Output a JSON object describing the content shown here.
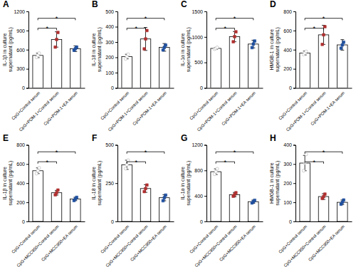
{
  "chart_data": [
    {
      "type": "bar",
      "title": "A",
      "ylabel": "IL-1β in culture\nsupernatant (pg/mL)",
      "ylim": [
        0,
        1200
      ],
      "yticks": [
        0,
        300,
        600,
        900,
        1200
      ],
      "categories": [
        "CpG+Control serum",
        "CpG+POM-1+Control serum",
        "CpG+POM-1+EA serum"
      ],
      "values": [
        510,
        760,
        615
      ],
      "errors": [
        35,
        120,
        45
      ],
      "color": "white",
      "dots": [
        {
          "values": [
            480,
            510,
            545
          ],
          "color": "#b0b0b0",
          "marker": "open-circle"
        },
        {
          "values": [
            640,
            760,
            870
          ],
          "color": "#b03030",
          "marker": "square"
        },
        {
          "values": [
            590,
            615,
            640
          ],
          "color": "#2050a0",
          "marker": "square"
        }
      ],
      "annotations": [
        {
          "text": "*",
          "between": [
            "CpG+Control serum",
            "CpG+POM-1+Control serum"
          ]
        },
        {
          "text": "*",
          "between": [
            "CpG+Control serum",
            "CpG+POM-1+EA serum"
          ]
        }
      ]
    },
    {
      "type": "bar",
      "title": "B",
      "ylabel": "IL-18 in culture\nsupernatant (pg/mL)",
      "ylim": [
        0,
        500
      ],
      "yticks": [
        0,
        100,
        200,
        300,
        400,
        500
      ],
      "categories": [
        "CpG+Control serum",
        "CpG+POM-1+Control serum",
        "CpG+POM-1+EA serum"
      ],
      "values": [
        205,
        320,
        265
      ],
      "errors": [
        15,
        75,
        25
      ],
      "color": "white",
      "dots": [
        {
          "values": [
            190,
            205,
            220
          ],
          "color": "#b0b0b0",
          "marker": "open-circle"
        },
        {
          "values": [
            255,
            320,
            375
          ],
          "color": "#b03030",
          "marker": "square"
        },
        {
          "values": [
            248,
            265,
            280
          ],
          "color": "#2050a0",
          "marker": "square"
        }
      ],
      "annotations": [
        {
          "text": "*",
          "between": [
            "CpG+Control serum",
            "CpG+POM-1+Control serum"
          ]
        },
        {
          "text": "*",
          "between": [
            "CpG+Control serum",
            "CpG+POM-1+EA serum"
          ]
        }
      ]
    },
    {
      "type": "bar",
      "title": "C",
      "ylabel": "IL-1α in culture\nsupernatant (pg/mL)",
      "ylim": [
        0,
        1500
      ],
      "yticks": [
        0,
        500,
        1000,
        1500
      ],
      "categories": [
        "CpG+Control serum",
        "CpG+POM-1+Control serum",
        "CpG+POM-1+EA serum"
      ],
      "values": [
        775,
        1005,
        860
      ],
      "errors": [
        20,
        100,
        75
      ],
      "color": "white",
      "dots": [
        {
          "values": [
            760,
            775,
            795
          ],
          "color": "#b0b0b0",
          "marker": "open-circle"
        },
        {
          "values": [
            905,
            1005,
            1100
          ],
          "color": "#b03030",
          "marker": "square"
        },
        {
          "values": [
            790,
            860,
            920
          ],
          "color": "#2050a0",
          "marker": "square"
        }
      ],
      "annotations": [
        {
          "text": "*",
          "between": [
            "CpG+Control serum",
            "CpG+POM-1+Control serum"
          ]
        },
        {
          "text": "*",
          "between": [
            "CpG+Control serum",
            "CpG+POM-1+EA serum"
          ]
        }
      ]
    },
    {
      "type": "bar",
      "title": "D",
      "ylabel": "HMGB-1 in culture\nsupernatant (pg/mL)",
      "ylim": [
        0,
        800
      ],
      "yticks": [
        0,
        200,
        400,
        600,
        800
      ],
      "categories": [
        "CpG+Control serum",
        "CpG+POM-1+Control serum",
        "CpG+POM-1+EA serum"
      ],
      "values": [
        365,
        555,
        450
      ],
      "errors": [
        20,
        100,
        55
      ],
      "color": "white",
      "dots": [
        {
          "values": [
            350,
            365,
            382
          ],
          "color": "#b0b0b0",
          "marker": "open-circle"
        },
        {
          "values": [
            455,
            555,
            640
          ],
          "color": "#b03030",
          "marker": "square"
        },
        {
          "values": [
            415,
            450,
            478
          ],
          "color": "#2050a0",
          "marker": "square"
        }
      ],
      "annotations": [
        {
          "text": "*",
          "between": [
            "CpG+Control serum",
            "CpG+POM-1+Control serum"
          ]
        },
        {
          "text": "*",
          "between": [
            "CpG+Control serum",
            "CpG+POM-1+EA serum"
          ]
        }
      ]
    },
    {
      "type": "bar",
      "title": "E",
      "ylabel": "IL-1β in culture\nsupernatant (pg/mL)",
      "ylim": [
        0,
        800
      ],
      "yticks": [
        0,
        200,
        400,
        600,
        800
      ],
      "categories": [
        "CpG+Control serum",
        "CpG+MCC950+Control serum",
        "CpG+MCC950+EA serum"
      ],
      "values": [
        530,
        300,
        235
      ],
      "errors": [
        30,
        25,
        18
      ],
      "color": "white",
      "dots": [
        {
          "values": [
            500,
            530,
            560
          ],
          "color": "#b0b0b0",
          "marker": "open-circle"
        },
        {
          "values": [
            278,
            300,
            328
          ],
          "color": "#b03030",
          "marker": "square"
        },
        {
          "values": [
            218,
            235,
            252
          ],
          "color": "#2050a0",
          "marker": "square"
        }
      ],
      "annotations": [
        {
          "text": "*",
          "between": [
            "CpG+Control serum",
            "CpG+MCC950+Control serum"
          ]
        },
        {
          "text": "*",
          "between": [
            "CpG+Control serum",
            "CpG+MCC950+EA serum"
          ]
        }
      ]
    },
    {
      "type": "bar",
      "title": "F",
      "ylabel": "IL-18 in culture\nsupernatant (pg/mL)",
      "ylim": [
        0,
        500
      ],
      "yticks": [
        0,
        250,
        500
      ],
      "categories": [
        "CpG+Control serum",
        "CpG+MCC950+Control serum",
        "CpG+MCC950+EA serum"
      ],
      "values": [
        370,
        215,
        155
      ],
      "errors": [
        30,
        25,
        20
      ],
      "color": "white",
      "dots": [
        {
          "values": [
            345,
            370,
            400
          ],
          "color": "#b0b0b0",
          "marker": "open-circle"
        },
        {
          "values": [
            195,
            215,
            238
          ],
          "color": "#b03030",
          "marker": "square"
        },
        {
          "values": [
            135,
            155,
            172
          ],
          "color": "#2050a0",
          "marker": "square"
        }
      ],
      "annotations": [
        {
          "text": "*",
          "between": [
            "CpG+Control serum",
            "CpG+MCC950+Control serum"
          ]
        },
        {
          "text": "*",
          "between": [
            "CpG+Control serum",
            "CpG+MCC950+EA serum"
          ]
        }
      ]
    },
    {
      "type": "bar",
      "title": "G",
      "ylabel": "IL-1α in culture\nsupernatant (pg/mL)",
      "ylim": [
        0,
        1200
      ],
      "yticks": [
        0,
        400,
        800,
        1200
      ],
      "categories": [
        "CpG+Control serum",
        "CpG+MCC950+Control serum",
        "CpG+MCC950+EA serum"
      ],
      "values": [
        780,
        420,
        310
      ],
      "errors": [
        45,
        35,
        25
      ],
      "color": "white",
      "dots": [
        {
          "values": [
            740,
            780,
            825
          ],
          "color": "#b0b0b0",
          "marker": "open-circle"
        },
        {
          "values": [
            395,
            420,
            450
          ],
          "color": "#b03030",
          "marker": "square"
        },
        {
          "values": [
            290,
            310,
            332
          ],
          "color": "#2050a0",
          "marker": "square"
        }
      ],
      "annotations": [
        {
          "text": "*",
          "between": [
            "CpG+Control serum",
            "CpG+MCC950+Control serum"
          ]
        },
        {
          "text": "*",
          "between": [
            "CpG+Control serum",
            "CpG+MCC950+EA serum"
          ]
        }
      ]
    },
    {
      "type": "bar",
      "title": "H",
      "ylabel": "HMGB-1 in culture\nsupernatant (pg/mL)",
      "ylim": [
        0,
        400
      ],
      "yticks": [
        0,
        100,
        200,
        300,
        400
      ],
      "categories": [
        "CpG+Control serum",
        "CpG+MCC950+Control serum",
        "CpG+MCC950+EA serum"
      ],
      "values": [
        305,
        130,
        100
      ],
      "errors": [
        40,
        15,
        12
      ],
      "color": "white",
      "dots": [
        {
          "values": [
            265,
            305,
            350
          ],
          "color": "#b0b0b0",
          "marker": "open-circle"
        },
        {
          "values": [
            120,
            130,
            143
          ],
          "color": "#b03030",
          "marker": "square"
        },
        {
          "values": [
            90,
            100,
            112
          ],
          "color": "#2050a0",
          "marker": "square"
        }
      ],
      "annotations": [
        {
          "text": "*",
          "between": [
            "CpG+Control serum",
            "CpG+MCC950+Control serum"
          ]
        },
        {
          "text": "*",
          "between": [
            "CpG+Control serum",
            "CpG+MCC950+EA serum"
          ]
        }
      ]
    }
  ]
}
